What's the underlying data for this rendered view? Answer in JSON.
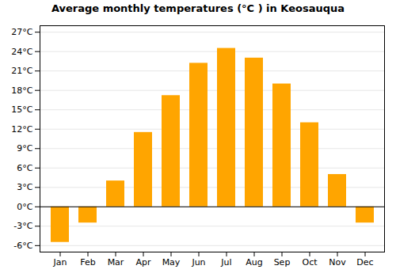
{
  "chart_data": {
    "type": "bar",
    "title": "Average monthly temperatures (°C ) in Keosauqua",
    "categories": [
      "Jan",
      "Feb",
      "Mar",
      "Apr",
      "May",
      "Jun",
      "Jul",
      "Aug",
      "Sep",
      "Oct",
      "Nov",
      "Dec"
    ],
    "values": [
      -5.5,
      -2.5,
      4.0,
      11.5,
      17.2,
      22.2,
      24.5,
      23.0,
      19.0,
      13.0,
      5.0,
      -2.5
    ],
    "color": "#FFA500",
    "ylim": [
      -7,
      28
    ],
    "yticks": [
      {
        "value": -6,
        "label": "-6°C"
      },
      {
        "value": -3,
        "label": "-3°C"
      },
      {
        "value": 0,
        "label": "0°C"
      },
      {
        "value": 3,
        "label": "3°C"
      },
      {
        "value": 6,
        "label": "6°C"
      },
      {
        "value": 9,
        "label": "9°C"
      },
      {
        "value": 12,
        "label": "12°C"
      },
      {
        "value": 15,
        "label": "15°C"
      },
      {
        "value": 18,
        "label": "18°C"
      },
      {
        "value": 21,
        "label": "21°C"
      },
      {
        "value": 24,
        "label": "24°C"
      },
      {
        "value": 27,
        "label": "27°C"
      }
    ],
    "grid": true
  }
}
